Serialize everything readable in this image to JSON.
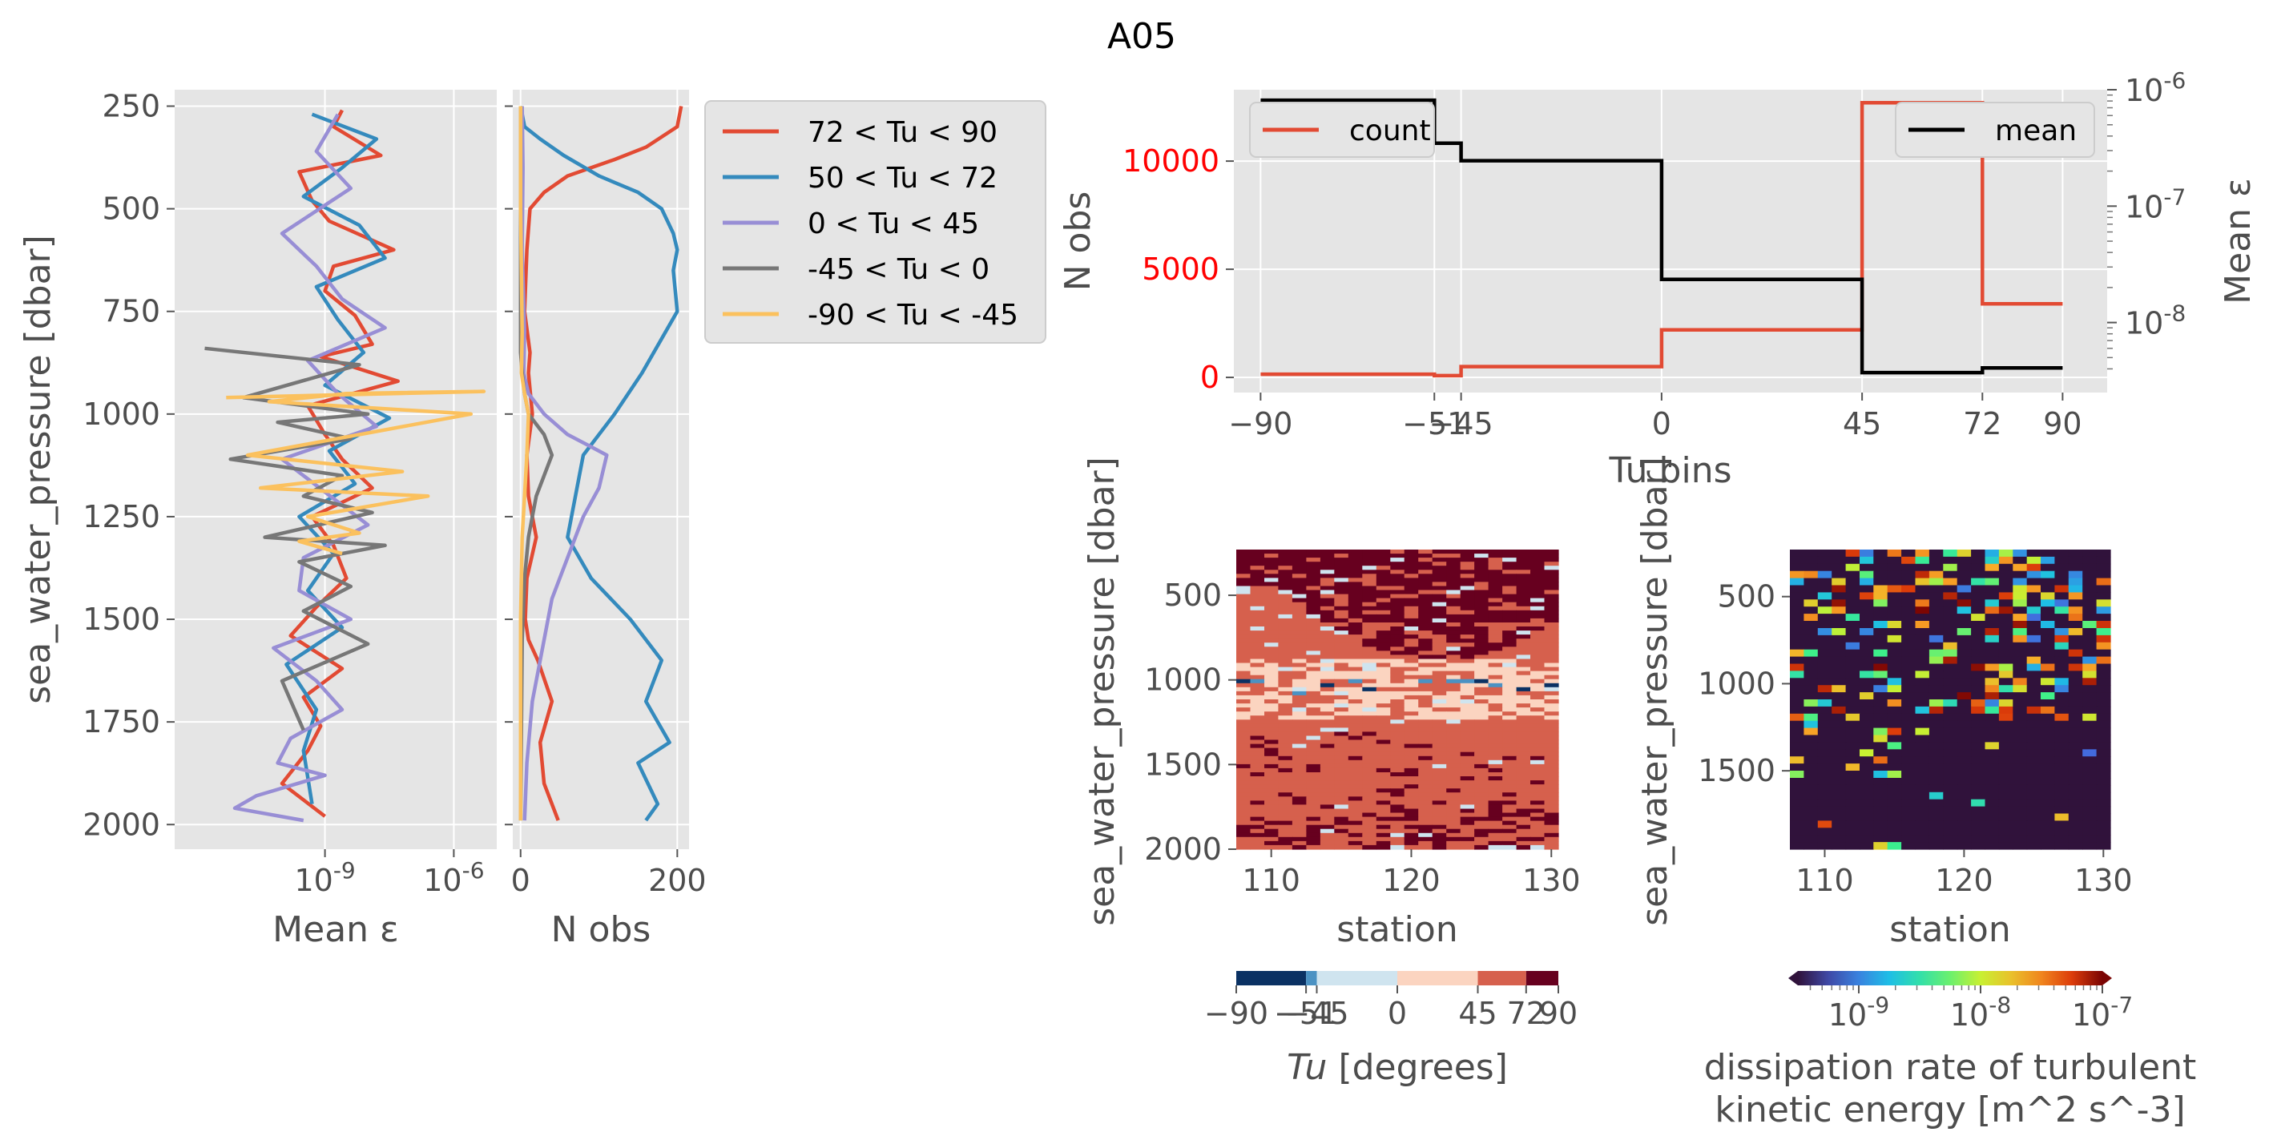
{
  "figure": {
    "title": "A05"
  },
  "colors": {
    "panel_bg": "#e5e5e5",
    "grid": "#ffffff",
    "series": [
      "#e24a33",
      "#348abd",
      "#988ed5",
      "#777777",
      "#fbc15e"
    ],
    "count_line": "#e24a33",
    "mean_line": "#000000",
    "red_tick": "#ff0000",
    "tu_colormap": [
      "#0a3163",
      "#4b92c3",
      "#cfe4ef",
      "#fbd4c0",
      "#d6604d",
      "#67001f"
    ]
  },
  "chart_data": [
    {
      "id": "eps_profiles",
      "type": "line",
      "xlabel": "Mean ε",
      "ylabel": "sea_water_pressure [dbar]",
      "xscale": "log",
      "xlim_log10": [
        -12.5,
        -5.0
      ],
      "ylim": [
        2060,
        210
      ],
      "x_ticks": [
        {
          "value": -9,
          "label": "10^{-9}"
        },
        {
          "value": -6,
          "label": "10^{-6}"
        }
      ],
      "y_ticks": [
        250,
        500,
        750,
        1000,
        1250,
        1500,
        1750,
        2000
      ],
      "y_tick_labels": [
        "250",
        "500",
        "750",
        "1000",
        "1250",
        "1500",
        "1750",
        "2000"
      ],
      "note": "x values are log10(mean dissipation rate, W/kg)",
      "series": [
        {
          "name": "72 < Tu < 90",
          "x": [
            -8.6,
            -8.8,
            -7.7,
            -9.6,
            -9.3,
            -8.9,
            -7.4,
            -8.8,
            -9.0,
            -8.3,
            -7.9,
            -9.1,
            -7.3,
            -9.4,
            -9.0,
            -8.6,
            -7.9,
            -9.3,
            -8.8,
            -8.5,
            -9.2,
            -9.8,
            -8.6,
            -9.5,
            -9.1,
            -9.4,
            -10.0,
            -9.0
          ],
          "y": [
            260,
            300,
            370,
            410,
            480,
            530,
            600,
            640,
            700,
            760,
            830,
            860,
            920,
            980,
            1050,
            1110,
            1180,
            1250,
            1320,
            1400,
            1470,
            1540,
            1620,
            1690,
            1760,
            1820,
            1900,
            1980
          ]
        },
        {
          "name": "50 < Tu < 72",
          "x": [
            -9.3,
            -7.8,
            -8.6,
            -9.5,
            -8.2,
            -7.6,
            -9.2,
            -8.7,
            -8.1,
            -9.0,
            -7.5,
            -8.9,
            -8.3,
            -9.6,
            -8.8,
            -9.4,
            -8.6,
            -9.9,
            -9.2,
            -9.5,
            -9.3
          ],
          "y": [
            270,
            330,
            400,
            470,
            540,
            620,
            690,
            770,
            850,
            930,
            1010,
            1090,
            1170,
            1250,
            1340,
            1430,
            1520,
            1610,
            1720,
            1820,
            1950
          ]
        },
        {
          "name": "0 < Tu < 45",
          "x": [
            -8.7,
            -9.2,
            -8.4,
            -10.0,
            -9.2,
            -8.6,
            -7.6,
            -9.4,
            -8.7,
            -7.8,
            -10.0,
            -9.0,
            -8.0,
            -9.5,
            -9.6,
            -8.4,
            -10.2,
            -9.2,
            -8.6,
            -9.8,
            -10.1,
            -9.0,
            -10.6,
            -11.1,
            -9.5
          ],
          "y": [
            270,
            360,
            450,
            560,
            640,
            720,
            790,
            870,
            950,
            1030,
            1110,
            1190,
            1270,
            1350,
            1430,
            1500,
            1570,
            1650,
            1720,
            1790,
            1850,
            1880,
            1930,
            1960,
            1990
          ]
        },
        {
          "name": "-45 < Tu < 0",
          "x": [
            -11.8,
            -8.2,
            -10.9,
            -8.0,
            -10.1,
            -8.4,
            -11.2,
            -8.6,
            -9.5,
            -7.9,
            -10.4,
            -7.6,
            -9.6,
            -8.4,
            -9.5,
            -8.0,
            -10.0,
            -9.5
          ],
          "y": [
            840,
            880,
            960,
            1000,
            1020,
            1060,
            1110,
            1150,
            1200,
            1240,
            1300,
            1320,
            1360,
            1420,
            1480,
            1560,
            1650,
            1770
          ]
        },
        {
          "name": "-90 < Tu < -45",
          "x": [
            -11.3,
            -5.3,
            -8.5,
            -10.3,
            -5.6,
            -10.8,
            -7.2,
            -10.5,
            -6.6,
            -9.4,
            -8.2,
            -9.6,
            -8.6
          ],
          "y": [
            960,
            945,
            950,
            970,
            1000,
            1100,
            1140,
            1180,
            1200,
            1250,
            1290,
            1310,
            1340
          ]
        }
      ]
    },
    {
      "id": "nobs_profiles",
      "type": "line",
      "xlabel": "N obs",
      "xlim": [
        -10,
        215
      ],
      "ylim": [
        2060,
        210
      ],
      "x_ticks": [
        0,
        200
      ],
      "x_tick_labels": [
        "0",
        "200"
      ],
      "series": [
        {
          "name": "72 < Tu < 90",
          "x": [
            205,
            200,
            160,
            120,
            60,
            30,
            12,
            8,
            5,
            12,
            10,
            15,
            8,
            10,
            20,
            8,
            6,
            10,
            22,
            40,
            25,
            30,
            48
          ],
          "y": [
            250,
            300,
            350,
            380,
            420,
            460,
            500,
            600,
            750,
            850,
            900,
            1000,
            1100,
            1200,
            1300,
            1400,
            1500,
            1550,
            1600,
            1700,
            1800,
            1900,
            1990
          ]
        },
        {
          "name": "50 < Tu < 72",
          "x": [
            0,
            5,
            25,
            55,
            100,
            150,
            180,
            195,
            200,
            195,
            200,
            155,
            120,
            80,
            70,
            60,
            90,
            140,
            180,
            160,
            190,
            150,
            175,
            160
          ],
          "y": [
            250,
            300,
            330,
            370,
            420,
            460,
            500,
            560,
            600,
            650,
            750,
            900,
            1000,
            1100,
            1200,
            1300,
            1400,
            1500,
            1600,
            1700,
            1800,
            1850,
            1950,
            1990
          ]
        },
        {
          "name": "0 < Tu < 45",
          "x": [
            2,
            3,
            2,
            5,
            4,
            10,
            30,
            60,
            90,
            110,
            100,
            80,
            70,
            60,
            40,
            30,
            15,
            8,
            5
          ],
          "y": [
            250,
            400,
            600,
            800,
            900,
            950,
            1000,
            1050,
            1080,
            1100,
            1180,
            1250,
            1300,
            1350,
            1450,
            1550,
            1700,
            1850,
            1990
          ]
        },
        {
          "name": "-45 < Tu < 0",
          "x": [
            0,
            0,
            0,
            2,
            5,
            10,
            30,
            40,
            30,
            20,
            15,
            10,
            5,
            2,
            0
          ],
          "y": [
            250,
            600,
            850,
            900,
            950,
            1000,
            1050,
            1100,
            1150,
            1200,
            1250,
            1300,
            1400,
            1550,
            1990
          ]
        },
        {
          "name": "-90 < Tu < -45",
          "x": [
            0,
            0,
            2,
            1,
            5,
            10,
            8,
            5,
            2,
            0,
            0
          ],
          "y": [
            250,
            500,
            800,
            900,
            950,
            1000,
            1100,
            1200,
            1300,
            1500,
            1990
          ]
        }
      ]
    },
    {
      "id": "tu_bin_stats",
      "type": "line",
      "style": "step-pre",
      "xlabel": "Tu bins",
      "ylabel": "N obs",
      "ylabel_right": "Mean ε",
      "xlim": [
        -96,
        100
      ],
      "ylim": [
        -700,
        13300
      ],
      "ylim_right_log10": [
        -8.45,
        -6.0
      ],
      "x_ticks": [
        -90,
        -51,
        -45,
        0,
        45,
        72,
        90
      ],
      "x_tick_labels": [
        "−90",
        "−51",
        "−45",
        "0",
        "45",
        "72",
        "90"
      ],
      "y_ticks": [
        0,
        5000,
        10000
      ],
      "y_tick_labels": [
        "0",
        "5000",
        "10000"
      ],
      "right_ticks": [
        {
          "value": -8,
          "label": "10^{-8}"
        },
        {
          "value": -7,
          "label": "10^{-7}"
        },
        {
          "value": -6,
          "label": "10^{-6}"
        }
      ],
      "edges": [
        -90,
        -51,
        -45,
        0,
        45,
        72,
        90
      ],
      "count": {
        "name": "count",
        "values": [
          150,
          80,
          500,
          2200,
          12700,
          3400
        ]
      },
      "mean": {
        "name": "mean",
        "values_log10": [
          -6.09,
          -6.46,
          -6.61,
          -7.63,
          -8.43,
          -8.39
        ],
        "note": "log10 of mean dissipation rate"
      }
    },
    {
      "id": "tu_section",
      "type": "heatmap",
      "xlabel": "station",
      "ylabel": "sea_water_pressure [dbar]",
      "xlim": [
        107.5,
        130.5
      ],
      "ylim": [
        2000,
        230
      ],
      "x_ticks": [
        110,
        120,
        130
      ],
      "x_tick_labels": [
        "110",
        "120",
        "130"
      ],
      "y_ticks": [
        500,
        1000,
        1500,
        2000
      ],
      "y_tick_labels": [
        "500",
        "1000",
        "1500",
        "2000"
      ],
      "colorbar": {
        "label": "Tu [degrees]",
        "label_italic": "Tu",
        "label_rest": " [degrees]",
        "boundaries": [
          -90,
          -51,
          -45,
          0,
          45,
          72,
          90
        ],
        "tick_labels": [
          "−90",
          "−51",
          "−45",
          "0",
          "45",
          "72",
          "90"
        ]
      }
    },
    {
      "id": "eps_section",
      "type": "heatmap",
      "xlabel": "station",
      "ylabel": "sea_water_pressure [dbar]",
      "xlim": [
        107.5,
        130.5
      ],
      "ylim": [
        1950,
        230
      ],
      "x_ticks": [
        110,
        120,
        130
      ],
      "x_tick_labels": [
        "110",
        "120",
        "130"
      ],
      "y_ticks": [
        500,
        1000,
        1500
      ],
      "y_tick_labels": [
        "500",
        "1000",
        "1500"
      ],
      "colorbar": {
        "label_line1": "dissipation rate of turbulent",
        "label_line2": "kinetic energy [m^2 s^-3]",
        "range_log10": [
          -9.5,
          -7.0
        ],
        "ticks": [
          {
            "value": -9,
            "label": "10^{-9}"
          },
          {
            "value": -8,
            "label": "10^{-8}"
          },
          {
            "value": -7,
            "label": "10^{-7}"
          }
        ]
      }
    }
  ]
}
